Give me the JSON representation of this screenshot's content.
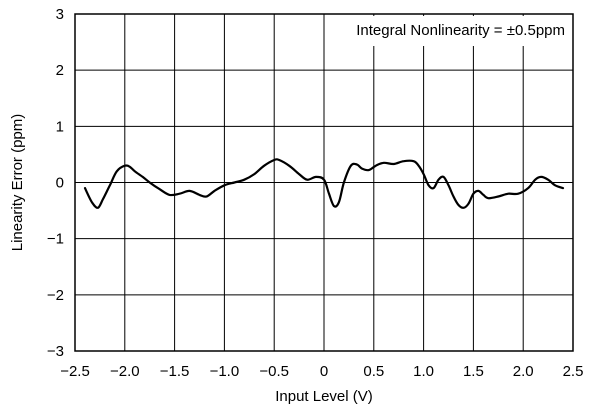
{
  "chart_data": {
    "type": "line",
    "title": "",
    "xlabel": "Input Level (V)",
    "ylabel": "Linearity Error (ppm)",
    "annotation": "Integral Nonlinearity = ±0.5ppm",
    "xlim": [
      -2.5,
      2.5
    ],
    "ylim": [
      -3,
      3
    ],
    "x_ticks": [
      -2.5,
      -2.0,
      -1.5,
      -1.0,
      -0.5,
      0,
      0.5,
      1.0,
      1.5,
      2.0,
      2.5
    ],
    "x_tick_labels": [
      "−2.5",
      "−2.0",
      "−1.5",
      "−1.0",
      "−0.5",
      "0",
      "0.5",
      "1.0",
      "1.5",
      "2.0",
      "2.5"
    ],
    "y_ticks": [
      -3,
      -2,
      -1,
      0,
      1,
      2,
      3
    ],
    "y_tick_labels": [
      "−3",
      "−2",
      "−1",
      "0",
      "1",
      "2",
      "3"
    ],
    "grid": true,
    "line_color": "#000000",
    "series": [
      {
        "x": [
          -2.4,
          -2.33,
          -2.27,
          -2.22,
          -2.15,
          -2.08,
          -2.0,
          -1.95,
          -1.9,
          -1.82,
          -1.75,
          -1.65,
          -1.55,
          -1.45,
          -1.35,
          -1.25,
          -1.18,
          -1.1,
          -1.0,
          -0.9,
          -0.8,
          -0.7,
          -0.6,
          -0.5,
          -0.45,
          -0.35,
          -0.25,
          -0.17,
          -0.08,
          0.0,
          0.05,
          0.1,
          0.15,
          0.2,
          0.27,
          0.33,
          0.38,
          0.45,
          0.52,
          0.6,
          0.7,
          0.8,
          0.9,
          0.95,
          1.0,
          1.05,
          1.1,
          1.15,
          1.2,
          1.25,
          1.3,
          1.35,
          1.4,
          1.45,
          1.5,
          1.55,
          1.6,
          1.65,
          1.75,
          1.85,
          1.95,
          2.05,
          2.12,
          2.18,
          2.25,
          2.32,
          2.4
        ],
        "y": [
          -0.1,
          -0.35,
          -0.45,
          -0.3,
          -0.05,
          0.2,
          0.3,
          0.28,
          0.2,
          0.1,
          0.0,
          -0.12,
          -0.22,
          -0.2,
          -0.15,
          -0.22,
          -0.25,
          -0.15,
          -0.05,
          0.0,
          0.05,
          0.15,
          0.3,
          0.4,
          0.4,
          0.3,
          0.15,
          0.05,
          0.1,
          0.05,
          -0.2,
          -0.42,
          -0.35,
          0.0,
          0.3,
          0.32,
          0.25,
          0.22,
          0.3,
          0.35,
          0.33,
          0.38,
          0.38,
          0.3,
          0.15,
          -0.05,
          -0.1,
          0.05,
          0.1,
          -0.05,
          -0.25,
          -0.4,
          -0.45,
          -0.38,
          -0.2,
          -0.15,
          -0.22,
          -0.28,
          -0.25,
          -0.2,
          -0.2,
          -0.1,
          0.05,
          0.1,
          0.05,
          -0.05,
          -0.1
        ]
      }
    ]
  }
}
